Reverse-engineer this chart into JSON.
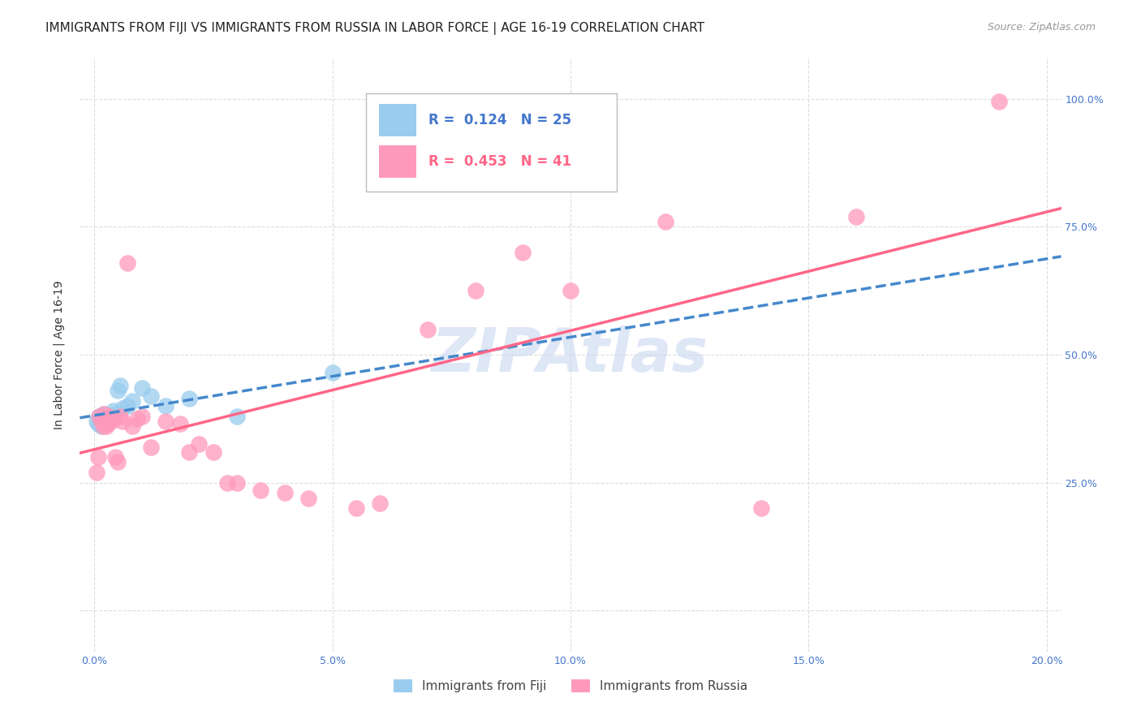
{
  "title": "IMMIGRANTS FROM FIJI VS IMMIGRANTS FROM RUSSIA IN LABOR FORCE | AGE 16-19 CORRELATION CHART",
  "source": "Source: ZipAtlas.com",
  "ylabel": "In Labor Force | Age 16-19",
  "fiji_color": "#99CCEE",
  "russia_color": "#FF99BB",
  "fiji_R": 0.124,
  "fiji_N": 25,
  "russia_R": 0.453,
  "russia_N": 41,
  "fiji_line_color": "#4488CC",
  "russia_line_color": "#FF6688",
  "background_color": "#FFFFFF",
  "grid_color": "#DDDDDD",
  "watermark": "ZIPAtlas",
  "watermark_color": "#C8D8F0",
  "legend_fiji_label": "Immigrants from Fiji",
  "legend_russia_label": "Immigrants from Russia",
  "fiji_x": [
    0.05,
    0.08,
    0.1,
    0.12,
    0.15,
    0.18,
    0.2,
    0.22,
    0.25,
    0.28,
    0.3,
    0.35,
    0.4,
    0.45,
    0.5,
    0.55,
    0.6,
    0.7,
    0.8,
    1.0,
    1.2,
    1.5,
    2.0,
    3.0,
    5.0
  ],
  "fiji_y": [
    37.0,
    36.5,
    38.0,
    37.5,
    36.0,
    37.0,
    38.5,
    37.0,
    36.5,
    38.0,
    37.5,
    38.0,
    39.0,
    38.5,
    43.0,
    44.0,
    39.5,
    40.0,
    41.0,
    43.5,
    42.0,
    40.0,
    41.5,
    38.0,
    46.5
  ],
  "russia_x": [
    0.05,
    0.08,
    0.1,
    0.15,
    0.18,
    0.2,
    0.22,
    0.25,
    0.28,
    0.3,
    0.35,
    0.4,
    0.45,
    0.5,
    0.55,
    0.6,
    0.7,
    0.8,
    0.9,
    1.0,
    1.2,
    1.5,
    1.8,
    2.0,
    2.2,
    2.5,
    2.8,
    3.0,
    3.5,
    4.0,
    4.5,
    5.5,
    6.0,
    7.0,
    8.0,
    9.0,
    10.0,
    12.0,
    14.0,
    16.0,
    19.0
  ],
  "russia_y": [
    27.0,
    30.0,
    38.0,
    37.0,
    36.0,
    38.5,
    37.5,
    36.0,
    36.5,
    38.0,
    37.0,
    37.5,
    30.0,
    29.0,
    38.0,
    37.0,
    68.0,
    36.0,
    37.5,
    38.0,
    32.0,
    37.0,
    36.5,
    31.0,
    32.5,
    31.0,
    25.0,
    25.0,
    23.5,
    23.0,
    22.0,
    20.0,
    21.0,
    55.0,
    62.5,
    70.0,
    62.5,
    76.0,
    20.0,
    77.0,
    99.5
  ],
  "xlim": [
    -0.3,
    20.3
  ],
  "ylim": [
    -8,
    108
  ],
  "x_ticks": [
    0,
    5,
    10,
    15,
    20
  ],
  "y_ticks": [
    0,
    25,
    50,
    75,
    100
  ],
  "x_tick_labels": [
    "0.0%",
    "5.0%",
    "10.0%",
    "15.0%",
    "20.0%"
  ],
  "y_tick_labels_right": [
    "",
    "25.0%",
    "50.0%",
    "75.0%",
    "100.0%"
  ],
  "title_fontsize": 11,
  "source_fontsize": 9,
  "tick_fontsize": 9,
  "axis_label_fontsize": 10,
  "legend_fontsize": 12
}
